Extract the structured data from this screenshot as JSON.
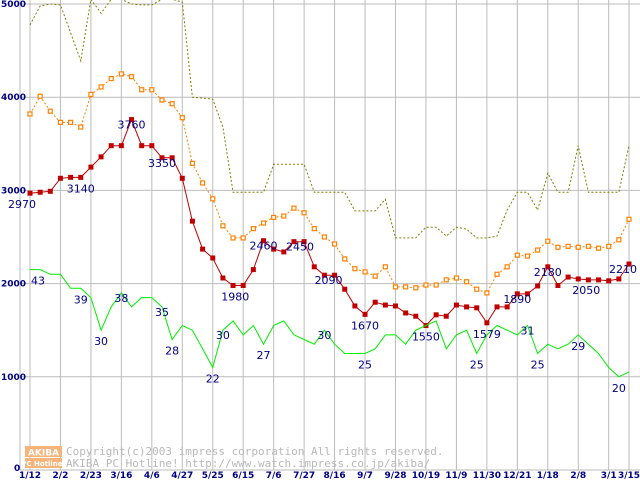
{
  "chart_data": {
    "type": "line",
    "title": "",
    "xlabel": "",
    "ylabel": "",
    "ylim": [
      0,
      5000
    ],
    "y_ticks": [
      "5000",
      "4000",
      "3000",
      "2000",
      "1000",
      "0"
    ],
    "y_tick_values": [
      5000,
      4000,
      3000,
      2000,
      1000,
      0
    ],
    "grid": true,
    "x_tick_labels": [
      "1/12",
      "2/2",
      "2/23",
      "3/16",
      "4/6",
      "4/27",
      "5/25",
      "6/15",
      "7/6",
      "7/27",
      "8/16",
      "9/7",
      "9/28",
      "10/19",
      "11/9",
      "11/30",
      "12/21",
      "1/18",
      "2/8",
      "3/1",
      "3/15"
    ],
    "x_tick_indices": [
      0,
      3,
      6,
      9,
      12,
      15,
      18,
      21,
      24,
      27,
      30,
      33,
      36,
      39,
      42,
      45,
      48,
      51,
      54,
      57,
      59
    ],
    "point_count": 60,
    "series": [
      {
        "name": "high",
        "color": "#808000",
        "style": "dotted",
        "marker": "none",
        "values": [
          4775,
          4980,
          5000,
          4990,
          4690,
          4390,
          5050,
          4900,
          5050,
          5050,
          5000,
          4990,
          4990,
          5050,
          5050,
          5020,
          4000,
          3990,
          3980,
          3680,
          2980,
          2980,
          2980,
          2980,
          3280,
          3280,
          3280,
          3280,
          2980,
          2980,
          2980,
          2980,
          2780,
          2780,
          2780,
          2905,
          2490,
          2490,
          2490,
          2605,
          2605,
          2510,
          2605,
          2585,
          2490,
          2490,
          2510,
          2790,
          2980,
          2980,
          2790,
          3185,
          2980,
          2980,
          3480,
          2980,
          2980,
          2980,
          2980,
          3480
        ]
      },
      {
        "name": "average",
        "color": "#ff8000",
        "style": "dotted",
        "marker": "hollow-square",
        "values": [
          3820,
          4010,
          3850,
          3730,
          3730,
          3680,
          4030,
          4110,
          4200,
          4250,
          4220,
          4080,
          4080,
          3970,
          3930,
          3780,
          3290,
          3080,
          2910,
          2620,
          2490,
          2490,
          2590,
          2650,
          2710,
          2725,
          2810,
          2760,
          2590,
          2500,
          2425,
          2265,
          2160,
          2125,
          2080,
          2180,
          1965,
          1965,
          1955,
          1985,
          1985,
          2040,
          2060,
          2020,
          1940,
          1900,
          2100,
          2180,
          2305,
          2295,
          2360,
          2455,
          2390,
          2400,
          2390,
          2400,
          2380,
          2400,
          2470,
          2690
        ]
      },
      {
        "name": "low",
        "color": "#c00000",
        "style": "solid",
        "marker": "square",
        "values": [
          2970,
          2980,
          2990,
          3130,
          3140,
          3140,
          3250,
          3360,
          3480,
          3480,
          3760,
          3480,
          3480,
          3350,
          3350,
          3130,
          2670,
          2370,
          2275,
          2060,
          1980,
          1980,
          2150,
          2460,
          2370,
          2340,
          2450,
          2450,
          2180,
          2090,
          2090,
          1940,
          1760,
          1670,
          1800,
          1770,
          1760,
          1685,
          1650,
          1550,
          1665,
          1650,
          1770,
          1750,
          1740,
          1579,
          1750,
          1750,
          1890,
          1890,
          1975,
          2180,
          1980,
          2070,
          2050,
          2040,
          2040,
          2030,
          2050,
          2210
        ]
      },
      {
        "name": "shop count",
        "color": "#00ee00",
        "style": "solid",
        "marker": "none",
        "scale": 50,
        "values": [
          43,
          43,
          42,
          42,
          39,
          39,
          37,
          30,
          35,
          38,
          35,
          37,
          37,
          35,
          28,
          31,
          30,
          26,
          22,
          30,
          32,
          29,
          31,
          27,
          31,
          32,
          29,
          28,
          27,
          30,
          27,
          25,
          25,
          25,
          26,
          29,
          29,
          27,
          30,
          31,
          32,
          26,
          29,
          30,
          25,
          29,
          31,
          30,
          29,
          31,
          25,
          27,
          26,
          27,
          29,
          27,
          25,
          22,
          20,
          21
        ]
      }
    ],
    "annotations": [
      {
        "series": 2,
        "index": 0,
        "text": "2970",
        "place": "below-left"
      },
      {
        "series": 2,
        "index": 5,
        "text": "3140",
        "place": "below"
      },
      {
        "series": 2,
        "index": 10,
        "text": "3760",
        "place": "below-near"
      },
      {
        "series": 2,
        "index": 13,
        "text": "3350",
        "place": "below-near"
      },
      {
        "series": 2,
        "index": 21,
        "text": "1980",
        "place": "below-left"
      },
      {
        "series": 2,
        "index": 23,
        "text": "2460",
        "place": "below-near"
      },
      {
        "series": 2,
        "index": 26,
        "text": "2450",
        "place": "below-near-right"
      },
      {
        "series": 2,
        "index": 30,
        "text": "2090",
        "place": "below-near-left"
      },
      {
        "series": 2,
        "index": 33,
        "text": "1670",
        "place": "below"
      },
      {
        "series": 2,
        "index": 39,
        "text": "1550",
        "place": "below"
      },
      {
        "series": 2,
        "index": 45,
        "text": "1579",
        "place": "below"
      },
      {
        "series": 2,
        "index": 48,
        "text": "1890",
        "place": "below-near"
      },
      {
        "series": 2,
        "index": 51,
        "text": "2180",
        "place": "below-near"
      },
      {
        "series": 2,
        "index": 54,
        "text": "2050",
        "place": "below-right"
      },
      {
        "series": 2,
        "index": 59,
        "text": "2210",
        "place": "below-near-left"
      },
      {
        "series": 3,
        "index": 0,
        "text": "43",
        "place": "below-right"
      },
      {
        "series": 3,
        "index": 5,
        "text": "39",
        "place": "below"
      },
      {
        "series": 3,
        "index": 7,
        "text": "30",
        "place": "below"
      },
      {
        "series": 3,
        "index": 9,
        "text": "38",
        "place": "below-near"
      },
      {
        "series": 3,
        "index": 13,
        "text": "35",
        "place": "below-near"
      },
      {
        "series": 3,
        "index": 14,
        "text": "28",
        "place": "below"
      },
      {
        "series": 3,
        "index": 18,
        "text": "22",
        "place": "below"
      },
      {
        "series": 3,
        "index": 19,
        "text": "30",
        "place": "below-near"
      },
      {
        "series": 3,
        "index": 23,
        "text": "27",
        "place": "below"
      },
      {
        "series": 3,
        "index": 29,
        "text": "30",
        "place": "below-near"
      },
      {
        "series": 3,
        "index": 33,
        "text": "25",
        "place": "below"
      },
      {
        "series": 3,
        "index": 44,
        "text": "25",
        "place": "below"
      },
      {
        "series": 3,
        "index": 49,
        "text": "31",
        "place": "below-near"
      },
      {
        "series": 3,
        "index": 50,
        "text": "25",
        "place": "below"
      },
      {
        "series": 3,
        "index": 54,
        "text": "29",
        "place": "below"
      },
      {
        "series": 3,
        "index": 58,
        "text": "20",
        "place": "below"
      }
    ],
    "legend": "none"
  },
  "watermark": {
    "logo_top": "AKIBA",
    "logo_bottom": "PC Hotline!",
    "copyright": "Copyright(c)2003 impress corporation All rights reserved.",
    "site_line": "AKIBA PC Hotline!  http://www.watch.impress.co.jp/akiba/"
  }
}
